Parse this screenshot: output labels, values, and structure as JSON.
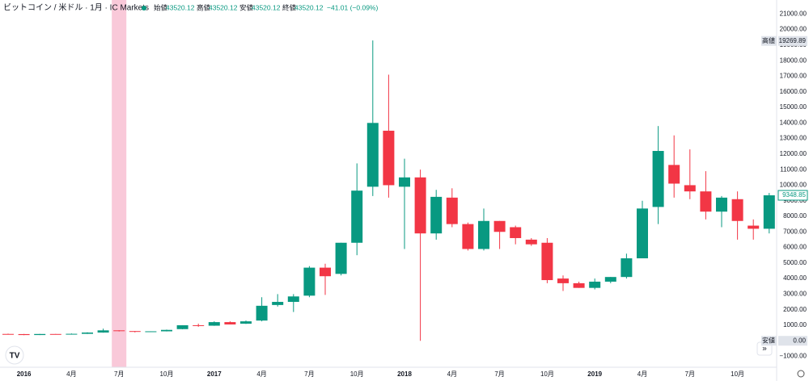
{
  "chart_data": {
    "type": "candlestick",
    "title": "ビットコイン / 米ドル · 1月 · IC Markets",
    "legend_items": [
      {
        "label": "始値",
        "value": "43520.12"
      },
      {
        "label": "高値",
        "value": "43520.12"
      },
      {
        "label": "安値",
        "value": "43520.12"
      },
      {
        "label": "終値",
        "value": "43520.12"
      }
    ],
    "change": "−41.01 (−0.09%)",
    "categories": [
      null,
      "2016",
      null,
      null,
      "4月",
      null,
      null,
      "7月",
      null,
      null,
      "10月",
      null,
      null,
      "2017",
      null,
      null,
      "4月",
      null,
      null,
      "7月",
      null,
      null,
      "10月",
      null,
      null,
      "2018",
      null,
      null,
      "4月",
      null,
      null,
      "7月",
      null,
      null,
      "10月",
      null,
      null,
      "2019",
      null,
      null,
      "4月",
      null,
      null,
      "7月",
      null,
      null,
      "10月",
      null,
      null
    ],
    "open": [
      440,
      430,
      370,
      437,
      416,
      448,
      530,
      670,
      624,
      575,
      609,
      750,
      1000,
      970,
      1200,
      1100,
      1300,
      2300,
      2500,
      2900,
      4700,
      4300,
      6300,
      9900,
      13500,
      9900,
      10500,
      6900,
      9200,
      7500,
      5900,
      7700,
      7300,
      6500,
      6300,
      4000,
      3700,
      3400,
      3800,
      4100,
      5300,
      8600,
      11300,
      10000,
      9600,
      8300,
      9100,
      7400,
      7200
    ],
    "high": [
      460,
      440,
      440,
      440,
      470,
      550,
      780,
      680,
      625,
      610,
      720,
      1000,
      1100,
      1250,
      1250,
      1300,
      2800,
      3000,
      3000,
      4800,
      4950,
      6300,
      11400,
      19300,
      17100,
      11700,
      11000,
      9700,
      9800,
      7600,
      8500,
      7700,
      7400,
      6600,
      6600,
      4200,
      3800,
      4000,
      4100,
      5600,
      9000,
      13800,
      13200,
      12300,
      10900,
      9300,
      9600,
      7800,
      9500
    ],
    "low": [
      420,
      360,
      370,
      410,
      410,
      440,
      520,
      600,
      540,
      570,
      600,
      740,
      900,
      960,
      1050,
      1080,
      1250,
      2200,
      1850,
      2800,
      2950,
      4200,
      5500,
      9300,
      9200,
      5900,
      0,
      6500,
      7300,
      5800,
      5800,
      5900,
      6200,
      6100,
      3700,
      3200,
      3400,
      3300,
      3700,
      4000,
      5300,
      7500,
      9200,
      9100,
      7800,
      7300,
      6500,
      6500,
      6900
    ],
    "close": [
      430,
      370,
      437,
      416,
      448,
      530,
      670,
      624,
      575,
      609,
      700,
      1000,
      970,
      1200,
      1050,
      1250,
      2250,
      2500,
      2850,
      4700,
      4150,
      6300,
      9650,
      14000,
      10000,
      10500,
      6900,
      9250,
      7500,
      5900,
      7700,
      7000,
      6600,
      6200,
      3900,
      3700,
      3400,
      3800,
      4100,
      5300,
      8500,
      12200,
      10100,
      9600,
      8300,
      9200,
      7700,
      7200,
      9350
    ],
    "up_color": "#089981",
    "down_color": "#f23645",
    "ylim": [
      -1700,
      21900
    ],
    "yticks": [
      {
        "value": 21000,
        "label": "21000.00"
      },
      {
        "value": 20000,
        "label": "20000.00"
      },
      {
        "value": 19000,
        "label": "19000.00"
      },
      {
        "value": 18000,
        "label": "18000.00"
      },
      {
        "value": 17000,
        "label": "17000.00"
      },
      {
        "value": 16000,
        "label": "16000.00"
      },
      {
        "value": 15000,
        "label": "15000.00"
      },
      {
        "value": 14000,
        "label": "14000.00"
      },
      {
        "value": 13000,
        "label": "13000.00"
      },
      {
        "value": 12000,
        "label": "12000.00"
      },
      {
        "value": 11000,
        "label": "11000.00"
      },
      {
        "value": 10000,
        "label": "10000.00"
      },
      {
        "value": 9000,
        "label": "9000.00"
      },
      {
        "value": 8000,
        "label": "8000.00"
      },
      {
        "value": 7000,
        "label": "7000.00"
      },
      {
        "value": 6000,
        "label": "6000.00"
      },
      {
        "value": 5000,
        "label": "5000.00"
      },
      {
        "value": 4000,
        "label": "4000.00"
      },
      {
        "value": 3000,
        "label": "3000.00"
      },
      {
        "value": 2000,
        "label": "2000.00"
      },
      {
        "value": 1000,
        "label": "1000.00"
      },
      {
        "value": 0,
        "label": "0.00"
      },
      {
        "value": -1000,
        "label": "−1000.00"
      }
    ],
    "grid": false,
    "annotations": [
      {
        "label": "高値",
        "value": 19269.89,
        "color": "#dfe3ea"
      },
      {
        "label": null,
        "value": 9348.85,
        "color": "#089981"
      },
      {
        "label": "安値",
        "value": {
          "value": 0,
          "label": "0.00"
        },
        "color": "#dfe3ea"
      }
    ],
    "highlight_index": 7
  }
}
